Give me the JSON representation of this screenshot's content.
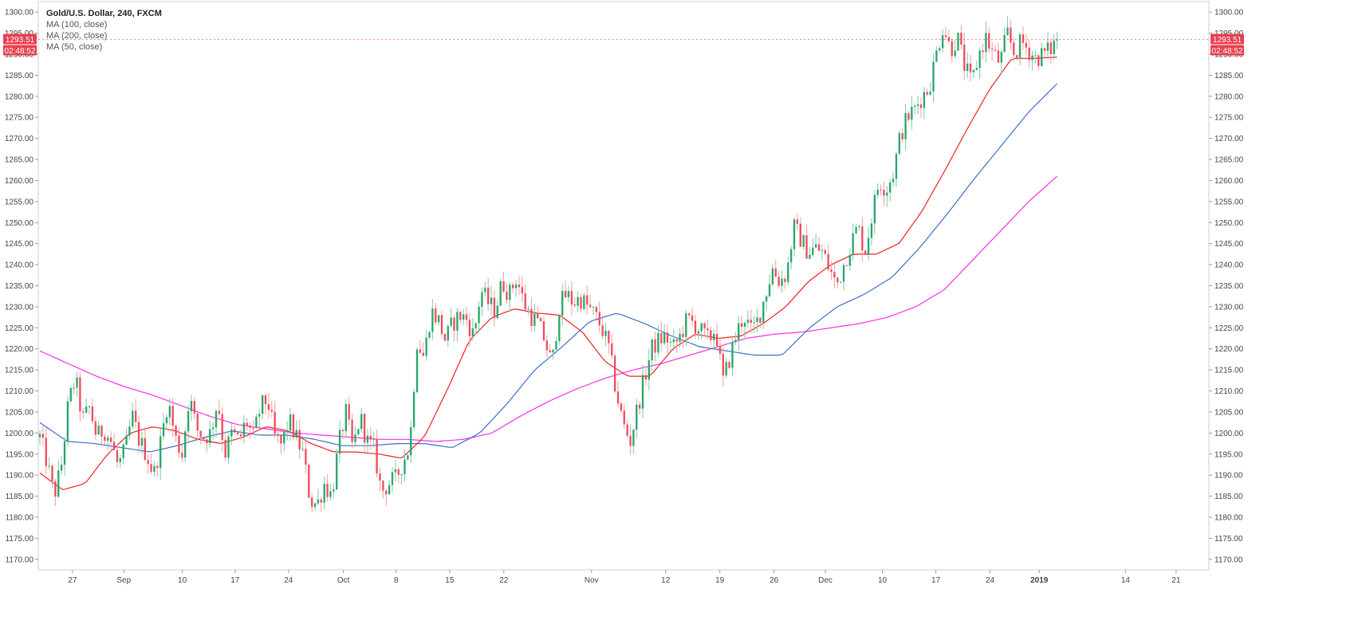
{
  "chart_data": {
    "type": "candlestick",
    "title": "Gold/U.S. Dollar, 240, FXCM",
    "legend": [
      {
        "label": "MA (100, close)",
        "color": "#3b6fc4"
      },
      {
        "label": "MA (200, close)",
        "color": "#ff2ce8"
      },
      {
        "label": "MA (50, close)",
        "color": "#ee2222"
      }
    ],
    "y_axis": {
      "min": 1167.5,
      "max": 1302.5,
      "ticks": [
        "1300.00",
        "1295.00",
        "1290.00",
        "1285.00",
        "1280.00",
        "1275.00",
        "1270.00",
        "1265.00",
        "1260.00",
        "1255.00",
        "1250.00",
        "1245.00",
        "1240.00",
        "1235.00",
        "1230.00",
        "1225.00",
        "1220.00",
        "1215.00",
        "1210.00",
        "1205.00",
        "1200.00",
        "1195.00",
        "1190.00",
        "1185.00",
        "1180.00",
        "1175.00",
        "1170.00"
      ]
    },
    "x_axis": {
      "ticks": [
        {
          "label": "27",
          "bold": false
        },
        {
          "label": "Sep",
          "bold": false
        },
        {
          "label": "10",
          "bold": false
        },
        {
          "label": "17",
          "bold": false
        },
        {
          "label": "24",
          "bold": false
        },
        {
          "label": "Oct",
          "bold": false
        },
        {
          "label": "8",
          "bold": false
        },
        {
          "label": "15",
          "bold": false
        },
        {
          "label": "22",
          "bold": false
        },
        {
          "label": "Nov",
          "bold": false
        },
        {
          "label": "12",
          "bold": false
        },
        {
          "label": "19",
          "bold": false
        },
        {
          "label": "26",
          "bold": false
        },
        {
          "label": "Dec",
          "bold": false
        },
        {
          "label": "10",
          "bold": false
        },
        {
          "label": "17",
          "bold": false
        },
        {
          "label": "24",
          "bold": false
        },
        {
          "label": "2019",
          "bold": true
        },
        {
          "label": "14",
          "bold": false
        },
        {
          "label": "21",
          "bold": false
        }
      ]
    },
    "current_price": "1293.51",
    "countdown": "02:48:52",
    "price_keypoints": [
      1199,
      1193,
      1185,
      1192,
      1207,
      1213,
      1203,
      1206,
      1199,
      1201,
      1198,
      1192,
      1196,
      1204,
      1198,
      1195,
      1190,
      1198,
      1208,
      1199,
      1195,
      1209,
      1201,
      1199,
      1200,
      1208,
      1195,
      1200,
      1198,
      1203,
      1199,
      1206,
      1208,
      1199,
      1197,
      1203,
      1199,
      1195,
      1184,
      1183,
      1188,
      1185,
      1197,
      1205,
      1196,
      1204,
      1198,
      1196,
      1186,
      1188,
      1189,
      1193,
      1197,
      1222,
      1218,
      1229,
      1227,
      1222,
      1226,
      1228,
      1227,
      1223,
      1234,
      1231,
      1229,
      1236,
      1233,
      1237,
      1231,
      1228,
      1226,
      1222,
      1216,
      1230,
      1233,
      1231,
      1232,
      1230,
      1228,
      1225,
      1220,
      1210,
      1202,
      1198,
      1206,
      1213,
      1220,
      1222,
      1223,
      1220,
      1223,
      1227,
      1226,
      1224,
      1222,
      1225,
      1212,
      1218,
      1224,
      1228,
      1224,
      1227,
      1233,
      1239,
      1236,
      1238,
      1249,
      1246,
      1243,
      1244,
      1243,
      1239,
      1235,
      1240,
      1245,
      1249,
      1243,
      1252,
      1260,
      1258,
      1262,
      1271,
      1275,
      1277,
      1280,
      1282,
      1290,
      1297,
      1291,
      1294,
      1287,
      1283,
      1290,
      1294,
      1290,
      1288,
      1295,
      1290,
      1293,
      1291,
      1289,
      1290,
      1291,
      1293.5
    ],
    "ma_keypoints": {
      "ma50": [
        1190.5,
        1186.5,
        1188,
        1195,
        1200,
        1201.5,
        1200.5,
        1198.5,
        1197.5,
        1199,
        1201.5,
        1200.5,
        1197.5,
        1195.5,
        1195.5,
        1195,
        1194,
        1199,
        1210,
        1222,
        1227.5,
        1229.5,
        1228.5,
        1228,
        1224,
        1217,
        1213.5,
        1213.5,
        1220,
        1223.5,
        1222.5,
        1223,
        1226,
        1230,
        1236,
        1240,
        1242.5,
        1242.5,
        1245,
        1252.5,
        1262,
        1272,
        1281.5,
        1289,
        1289,
        1289.3
      ],
      "ma100": [
        1202.5,
        1198,
        1197.5,
        1196.5,
        1195.5,
        1197,
        1199,
        1200.5,
        1199.5,
        1199.5,
        1198.5,
        1197,
        1197,
        1197.5,
        1197.5,
        1196.5,
        1200,
        1207,
        1215,
        1220.5,
        1226.5,
        1228.5,
        1226,
        1223,
        1220.5,
        1219.5,
        1218.5,
        1218.5,
        1225,
        1230,
        1233,
        1237,
        1244,
        1252,
        1260.5,
        1268.5,
        1276.5,
        1283
      ],
      "ma200": [
        1219.5,
        1216.5,
        1213.5,
        1211,
        1209,
        1206.5,
        1204,
        1202,
        1201,
        1200,
        1199.5,
        1199,
        1198.5,
        1198.5,
        1198,
        1198.5,
        1200,
        1204,
        1207.5,
        1210.5,
        1213,
        1215,
        1216.5,
        1218.5,
        1220.5,
        1222.5,
        1223.5,
        1224,
        1225,
        1226,
        1227.5,
        1230,
        1234,
        1241,
        1248,
        1255,
        1261
      ]
    }
  }
}
